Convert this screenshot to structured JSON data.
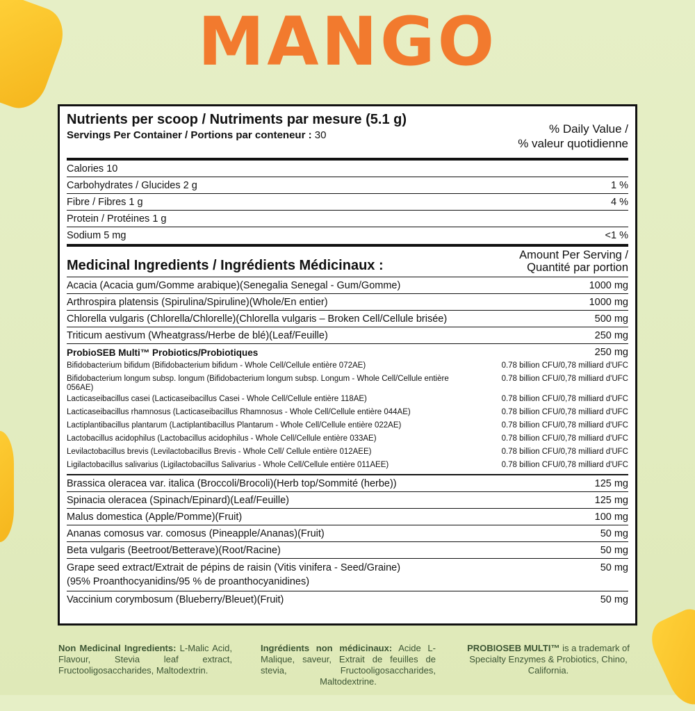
{
  "title": "MANGO",
  "header": {
    "nutrients": "Nutrients per scoop / Nutriments par mesure (5.1 g)",
    "servings_label": "Servings Per Container / Portions par conteneur :",
    "servings": "30",
    "dv1": "% Daily Value /",
    "dv2": "% valeur quotidienne"
  },
  "nutrients": [
    {
      "name": "Calories 10",
      "dv": ""
    },
    {
      "name": "Carbohydrates / Glucides 2 g",
      "dv": "1 %"
    },
    {
      "name": "Fibre / Fibres 1 g",
      "dv": "4 %"
    },
    {
      "name": "Protein / Protéines 1 g",
      "dv": ""
    },
    {
      "name": "Sodium 5 mg",
      "dv": "<1 %"
    }
  ],
  "medicinal": {
    "title": "Medicinal Ingredients / Ingrédients Médicinaux :",
    "amount1": "Amount Per Serving /",
    "amount2": "Quantité par portion"
  },
  "ingredients_a": [
    {
      "name": "Acacia (Acacia gum/Gomme arabique)(Senegalia Senegal - Gum/Gomme)",
      "amt": "1000 mg"
    },
    {
      "name": "Arthrospira platensis (Spirulina/Spiruline)(Whole/En entier)",
      "amt": "1000 mg"
    },
    {
      "name": "Chlorella vulgaris (Chlorella/Chlorelle)(Chlorella vulgaris – Broken Cell/Cellule brisée)",
      "amt": "500 mg"
    },
    {
      "name": "Triticum aestivum (Wheatgrass/Herbe de blé)(Leaf/Feuille)",
      "amt": "250 mg"
    }
  ],
  "probiotics": {
    "title": "ProbioSEB Multi™  Probiotics/Probiotiques",
    "amt": "250 mg",
    "items": [
      {
        "name": "Bifidobacterium bifidum (Bifidobacterium bifidum - Whole Cell/Cellule entière 072AE)",
        "amt": "0.78 billion CFU/0,78 milliard d'UFC"
      },
      {
        "name": "Bifidobacterium longum subsp. longum (Bifidobacterium longum subsp. Longum - Whole Cell/Cellule entière 056AE)",
        "amt": "0.78 billion CFU/0,78 milliard d'UFC"
      },
      {
        "name": "Lacticaseibacillus casei (Lacticaseibacillus Casei - Whole Cell/Cellule entière 118AE)",
        "amt": "0.78 billion CFU/0,78 milliard d'UFC"
      },
      {
        "name": "Lacticaseibacillus rhamnosus (Lacticaseibacillus Rhamnosus - Whole Cell/Cellule entière 044AE)",
        "amt": "0.78 billion CFU/0,78 milliard d'UFC"
      },
      {
        "name": "Lactiplantibacillus plantarum (Lactiplantibacillus Plantarum - Whole Cell/Cellule entière 022AE)",
        "amt": "0.78 billion CFU/0,78 milliard d'UFC"
      },
      {
        "name": "Lactobacillus acidophilus (Lactobacillus acidophilus - Whole Cell/Cellule entière 033AE)",
        "amt": "0.78 billion CFU/0,78 milliard d'UFC"
      },
      {
        "name": "Levilactobacillus brevis (Levilactobacillus Brevis - Whole Cell/ Cellule entière 012AEE)",
        "amt": "0.78 billion CFU/0,78 milliard d'UFC"
      },
      {
        "name": "Ligilactobacillus salivarius (Ligilactobacillus Salivarius - Whole Cell/Cellule entière 011AEE)",
        "amt": "0.78 billion CFU/0,78 milliard d'UFC"
      }
    ]
  },
  "ingredients_b": [
    {
      "name": "Brassica oleracea var. italica (Broccoli/Brocoli)(Herb top/Sommité (herbe))",
      "amt": "125 mg"
    },
    {
      "name": "Spinacia oleracea (Spinach/Epinard)(Leaf/Feuille)",
      "amt": "125 mg"
    },
    {
      "name": "Malus domestica (Apple/Pomme)(Fruit)",
      "amt": "100 mg"
    },
    {
      "name": "Ananas comosus var. comosus (Pineapple/Ananas)(Fruit)",
      "amt": "50 mg"
    },
    {
      "name": "Beta vulgaris (Beetroot/Betterave)(Root/Racine)",
      "amt": "50 mg"
    },
    {
      "name": "Grape seed extract/Extrait de pépins de raisin (Vitis vinifera - Seed/Graine)",
      "name2": "(95% Proanthocyanidins/95 % de proanthocyanidines)",
      "amt": "50 mg"
    },
    {
      "name": "Vaccinium corymbosum (Blueberry/Bleuet)(Fruit)",
      "amt": "50 mg"
    }
  ],
  "footer": {
    "nm_label": "Non Medicinal Ingredients:",
    "nm_text": " L-Malic Acid, Flavour, Stevia leaf extract, Fructooligosaccharides, Maltodextrin.",
    "fr_label": "Ingrédients non médicinaux:",
    "fr_text": " Acide L-Malique, saveur, Extrait de feuilles de stevia, Fructooligosaccharides, Maltodextrine.",
    "tm_label": "PROBIOSEB MULTI™",
    "tm_text": " is a trademark of Specialty Enzymes & Probiotics, Chino, California."
  },
  "colors": {
    "title": "#f27a2e",
    "footer_text": "#3c5533",
    "background": "#e4edc4"
  }
}
